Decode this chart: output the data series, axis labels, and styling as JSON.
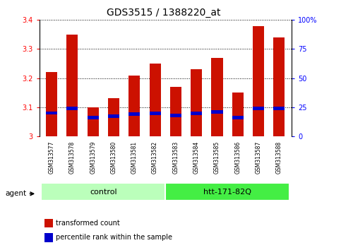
{
  "title": "GDS3515 / 1388220_at",
  "samples": [
    "GSM313577",
    "GSM313578",
    "GSM313579",
    "GSM313580",
    "GSM313581",
    "GSM313582",
    "GSM313583",
    "GSM313584",
    "GSM313585",
    "GSM313586",
    "GSM313587",
    "GSM313588"
  ],
  "transformed_counts": [
    3.22,
    3.35,
    3.1,
    3.13,
    3.21,
    3.25,
    3.17,
    3.23,
    3.27,
    3.15,
    3.38,
    3.34
  ],
  "percentile_ranks": [
    0.2,
    0.24,
    0.16,
    0.175,
    0.19,
    0.195,
    0.18,
    0.195,
    0.21,
    0.16,
    0.24,
    0.24
  ],
  "groups": [
    {
      "label": "control",
      "start": 0,
      "end": 5,
      "color": "#bbffbb"
    },
    {
      "label": "htt-171-82Q",
      "start": 6,
      "end": 11,
      "color": "#44ee44"
    }
  ],
  "ylim": [
    3.0,
    3.4
  ],
  "yticks": [
    3.0,
    3.1,
    3.2,
    3.3,
    3.4
  ],
  "y2ticks": [
    0,
    25,
    50,
    75,
    100
  ],
  "bar_color": "#cc1100",
  "percentile_color": "#0000cc",
  "bg_color": "#c8c8c8",
  "plot_bg": "#ffffff",
  "grid_color": "#000000",
  "bar_width": 0.55,
  "title_fontsize": 10,
  "tick_fontsize": 7,
  "label_fontsize": 8,
  "sample_fontsize": 5.5,
  "legend_fontsize": 7
}
